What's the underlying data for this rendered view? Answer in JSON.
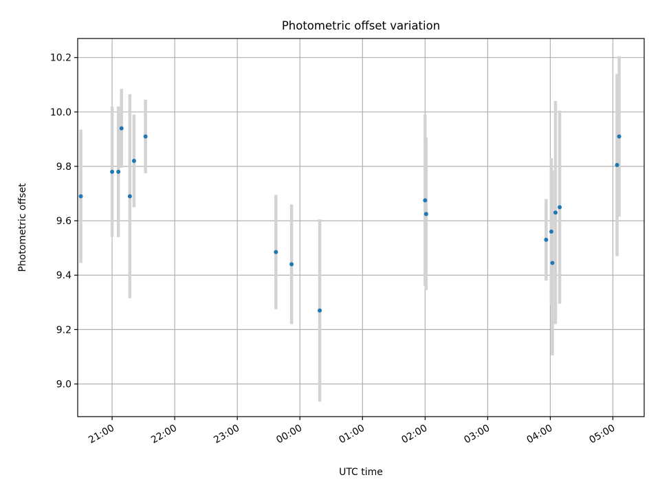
{
  "chart_data": {
    "type": "scatter",
    "title": "Photometric offset variation",
    "xlabel": "UTC time",
    "ylabel": "Photometric offset",
    "grid": true,
    "legend": "none",
    "x_unit": "UTC time",
    "xlim": [
      "20:27",
      "05:30"
    ],
    "ylim": [
      8.88,
      10.27
    ],
    "x_ticks": [
      "21:00",
      "22:00",
      "23:00",
      "00:00",
      "01:00",
      "02:00",
      "03:00",
      "04:00",
      "05:00"
    ],
    "y_ticks": [
      "9.0",
      "9.2",
      "9.4",
      "9.6",
      "9.8",
      "10.0",
      "10.2"
    ],
    "series": [
      {
        "marker_color": "#1f77b4",
        "errorbar_color": "#d3d3d3",
        "points": [
          {
            "x": "20:30",
            "y": 9.69,
            "yerr": 0.245
          },
          {
            "x": "21:00",
            "y": 9.78,
            "yerr": 0.24
          },
          {
            "x": "21:06",
            "y": 9.78,
            "yerr": 0.24
          },
          {
            "x": "21:09",
            "y": 9.94,
            "yerr": 0.145
          },
          {
            "x": "21:17",
            "y": 9.69,
            "yerr": 0.375
          },
          {
            "x": "21:21",
            "y": 9.82,
            "yerr": 0.17
          },
          {
            "x": "21:32",
            "y": 9.91,
            "yerr": 0.135
          },
          {
            "x": "23:37",
            "y": 9.485,
            "yerr": 0.21
          },
          {
            "x": "23:52",
            "y": 9.44,
            "yerr": 0.22
          },
          {
            "x": "00:19",
            "y": 9.27,
            "yerr": 0.335
          },
          {
            "x": "02:00",
            "y": 9.675,
            "yerr": 0.315
          },
          {
            "x": "02:01",
            "y": 9.625,
            "yerr": 0.28
          },
          {
            "x": "03:56",
            "y": 9.53,
            "yerr": 0.15
          },
          {
            "x": "04:01",
            "y": 9.56,
            "yerr": 0.27
          },
          {
            "x": "04:02",
            "y": 9.445,
            "yerr": 0.34
          },
          {
            "x": "04:05",
            "y": 9.63,
            "yerr": 0.41
          },
          {
            "x": "04:09",
            "y": 9.65,
            "yerr": 0.355
          },
          {
            "x": "05:04",
            "y": 9.805,
            "yerr": 0.335
          },
          {
            "x": "05:06",
            "y": 9.91,
            "yerr": 0.295
          }
        ]
      }
    ]
  }
}
